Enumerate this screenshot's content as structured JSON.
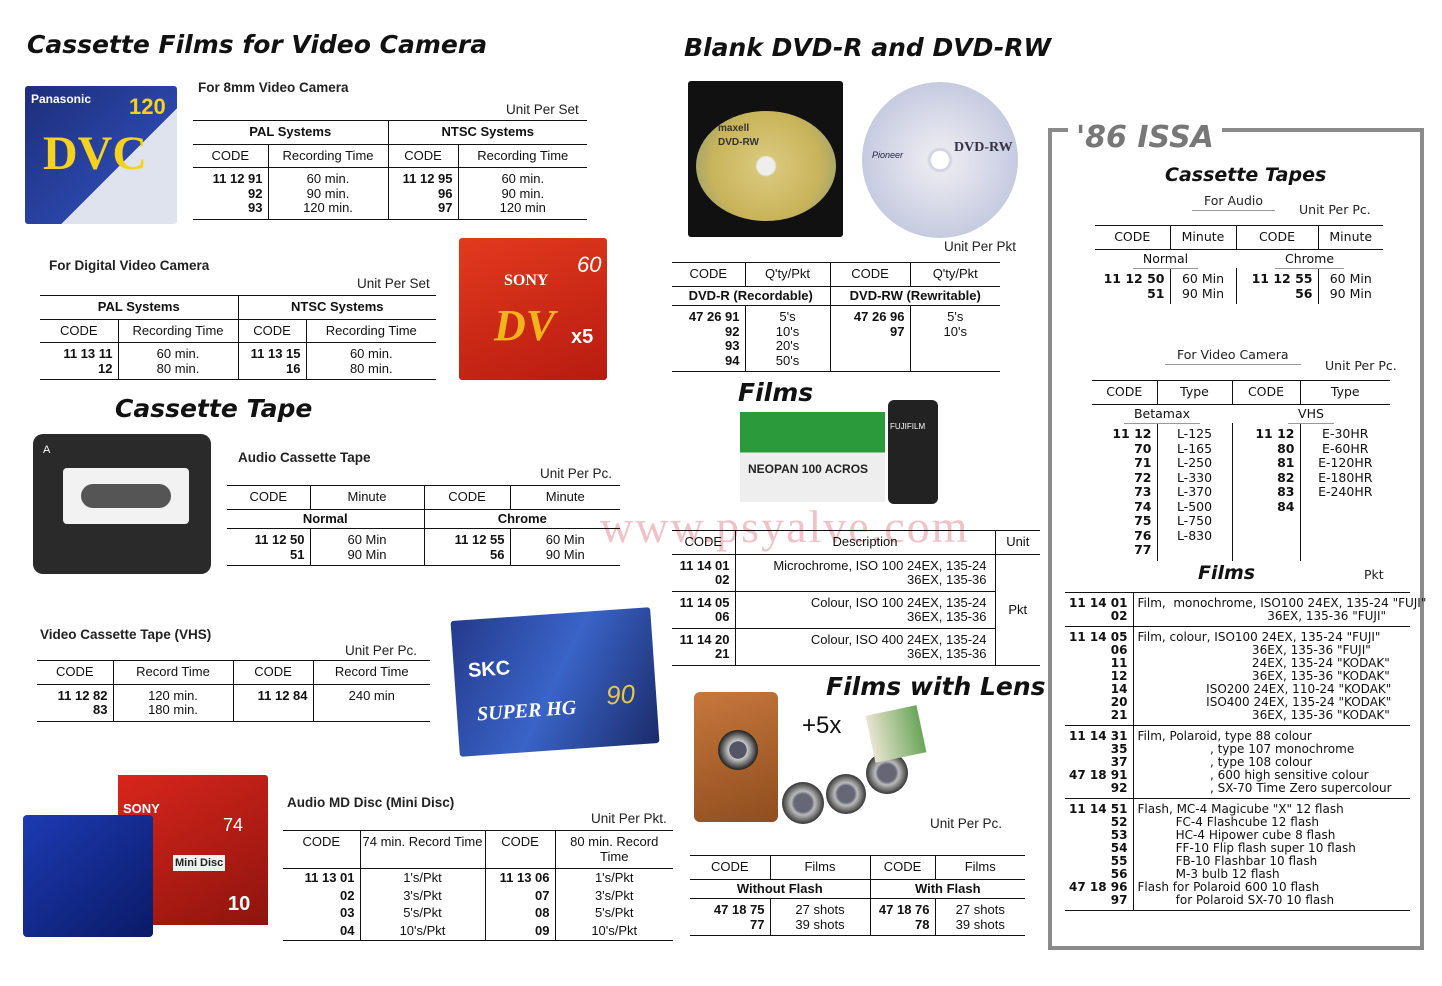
{
  "colors": {
    "panel_border": "#8a8a8a",
    "watermark": "#dc7882",
    "issa_title": "#777777"
  },
  "watermark": "www.psyalve.com",
  "section_video": {
    "title": "Cassette Films for Video Camera",
    "mm8": {
      "label": "For 8mm Video Camera",
      "unit": "Unit Per Set",
      "groups": [
        "PAL Systems",
        "NTSC Systems"
      ],
      "columns": [
        "CODE",
        "Recording Time",
        "CODE",
        "Recording Time"
      ],
      "rows": [
        [
          "11 12 91\n92\n93",
          "60 min.\n90 min.\n120 min.",
          "11 12 95\n96\n97",
          "60 min.\n90 min.\n120 min"
        ]
      ]
    },
    "digital": {
      "label": "For Digital Video Camera",
      "unit": "Unit Per Set",
      "groups": [
        "PAL Systems",
        "NTSC Systems"
      ],
      "columns": [
        "CODE",
        "Recording Time",
        "CODE",
        "Recording Time"
      ],
      "rows": [
        [
          "11 13 11\n12",
          "60 min.\n80 min.",
          "11 13 15\n16",
          "60 min.\n80 min."
        ]
      ]
    }
  },
  "section_tape": {
    "title": "Cassette Tape",
    "audio": {
      "label": "Audio Cassette Tape",
      "unit": "Unit Per Pc.",
      "columns": [
        "CODE",
        "Minute",
        "CODE",
        "Minute"
      ],
      "subgroups": [
        "Normal",
        "Chrome"
      ],
      "rows": [
        [
          "11 12  50\n51",
          "60 Min\n90 Min",
          "11 12 55\n56",
          "60 Min\n90 Min"
        ]
      ]
    },
    "vhs": {
      "label": "Video Cassette Tape (VHS)",
      "unit": "Unit Per Pc.",
      "columns": [
        "CODE",
        "Record Time",
        "CODE",
        "Record Time"
      ],
      "rows": [
        [
          "11 12 82\n83",
          "120 min.\n180 min.",
          "11 12 84",
          "240 min"
        ]
      ]
    },
    "md": {
      "label": "Audio MD Disc (Mini Disc)",
      "unit": "Unit Per Pkt.",
      "columns": [
        "CODE",
        "74 min. Record Time",
        "CODE",
        "80 min. Record Time"
      ],
      "rows": [
        [
          "11 13 01",
          "1's/Pkt",
          "11 13 06",
          "1's/Pkt"
        ],
        [
          "02",
          "3's/Pkt",
          "07",
          "3's/Pkt"
        ],
        [
          "03",
          "5's/Pkt",
          "08",
          "5's/Pkt"
        ],
        [
          "04",
          "10's/Pkt",
          "09",
          "10's/Pkt"
        ]
      ]
    }
  },
  "section_dvd": {
    "title": "Blank DVD-R and DVD-RW",
    "unit": "Unit Per Pkt",
    "columns": [
      "CODE",
      "Q'ty/Pkt",
      "CODE",
      "Q'ty/Pkt"
    ],
    "subgroups": [
      "DVD-R (Recordable)",
      "DVD-RW (Rewritable)"
    ],
    "rows": [
      [
        "47 26 91\n92\n93\n94",
        "5's\n10's\n20's\n50's",
        "47 26 96\n97",
        "5's\n10's"
      ]
    ]
  },
  "section_films": {
    "title": "Films",
    "columns": [
      "CODE",
      "Description",
      "Unit"
    ],
    "rows": [
      [
        "11 14 01\n02",
        "Microchrome,  ISO 100  24EX, 135-24\n36EX, 135-36",
        ""
      ],
      [
        "11 14 05\n06",
        "Colour,        ISO 100  24EX, 135-24\n36EX, 135-36",
        "Pkt"
      ],
      [
        "11 14 20\n21",
        "Colour,        ISO 400  24EX, 135-24\n36EX, 135-36",
        ""
      ]
    ]
  },
  "section_lens": {
    "title": "Films with Lens",
    "badge": "+5x",
    "unit": "Unit Per Pc.",
    "columns": [
      "CODE",
      "Films",
      "CODE",
      "Films"
    ],
    "subgroups": [
      "Without Flash",
      "With Flash"
    ],
    "rows": [
      [
        "47 18 75\n77",
        "27 shots\n39 shots",
        "47 18 76\n78",
        "27 shots\n39 shots"
      ]
    ]
  },
  "issa": {
    "title": "'86 ISSA",
    "cassette_title": "Cassette Tapes",
    "audio": {
      "label": "For Audio",
      "unit": "Unit Per Pc.",
      "columns": [
        "CODE",
        "Minute",
        "CODE",
        "Minute"
      ],
      "subgroups": [
        "Normal",
        "Chrome"
      ],
      "rows": [
        [
          "11 12 50\n51",
          "60 Min\n90 Min",
          "11 12 55\n56",
          "60 Min\n90 Min"
        ]
      ]
    },
    "video": {
      "label": "For Video Camera",
      "unit": "Unit Per Pc.",
      "columns": [
        "CODE",
        "Type",
        "CODE",
        "Type"
      ],
      "subgroups": [
        "Betamax",
        "VHS"
      ],
      "rows": [
        [
          "11 12 70\n71\n72\n73\n74\n75\n76\n77",
          "L-125\nL-165\nL-250\nL-330\nL-370\nL-500\nL-750\nL-830",
          "11 12 80\n81\n82\n83\n84",
          "E-30HR\nE-60HR\nE-120HR\nE-180HR\nE-240HR"
        ]
      ]
    },
    "films": {
      "title": "Films",
      "unit": "Pkt",
      "rows": [
        [
          "11 14 01\n02",
          "Film,  monochrome, ISO100 24EX, 135-24 \"FUJI\"\n                                  36EX, 135-36 \"FUJI\""
        ],
        [
          "11 14 05\n06\n11\n12\n14\n20\n21",
          "Film, colour, ISO100 24EX, 135-24 \"FUJI\"\n                              36EX, 135-36 \"FUJI\"\n                              24EX, 135-24 \"KODAK\"\n                              36EX, 135-36 \"KODAK\"\n                  ISO200 24EX, 110-24 \"KODAK\"\n                  ISO400 24EX, 135-24 \"KODAK\"\n                              36EX, 135-36 \"KODAK\""
        ],
        [
          "11 14 31\n35\n37\n47 18 91\n92",
          "Film, Polaroid, type 88 colour\n                   , type 107 monochrome\n                   , type 108 colour\n                   , 600 high sensitive colour\n                   , SX-70 Time Zero supercolour"
        ],
        [
          "11 14 51\n52\n53\n54\n55\n56\n47 18 96\n97",
          "Flash, MC-4 Magicube \"X\" 12 flash\n          FC-4 Flashcube 12 flash\n          HC-4 Hipower cube 8 flash\n          FF-10 Flip flash super 10 flash\n          FB-10 Flashbar 10 flash\n          M-3 bulb 12 flash\nFlash for Polaroid 600 10 flash\n          for Polaroid SX-70 10 flash"
        ]
      ]
    }
  },
  "images": {
    "dvc": {
      "brand": "Panasonic",
      "text": "DVC",
      "minutes": "120"
    },
    "sony_dv": {
      "brand": "SONY",
      "text": "DV",
      "minutes": "60",
      "pack": "x5"
    },
    "cassette": {
      "brand": "A"
    },
    "skc": {
      "brand": "SKC",
      "text": "SUPER HG",
      "minutes": "90"
    },
    "sony_md": {
      "brand": "SONY",
      "text": "Mini Disc",
      "minutes": "74",
      "pack": "10"
    },
    "dvd_rw_spindle": {
      "brand": "maxell",
      "text": "DVD-RW"
    },
    "dvd_rw_disc": {
      "brand": "Pioneer",
      "text": "DVD-RW"
    },
    "films": {
      "brand": "FUJIFILM",
      "text": "NEOPAN 100 ACROS"
    }
  }
}
